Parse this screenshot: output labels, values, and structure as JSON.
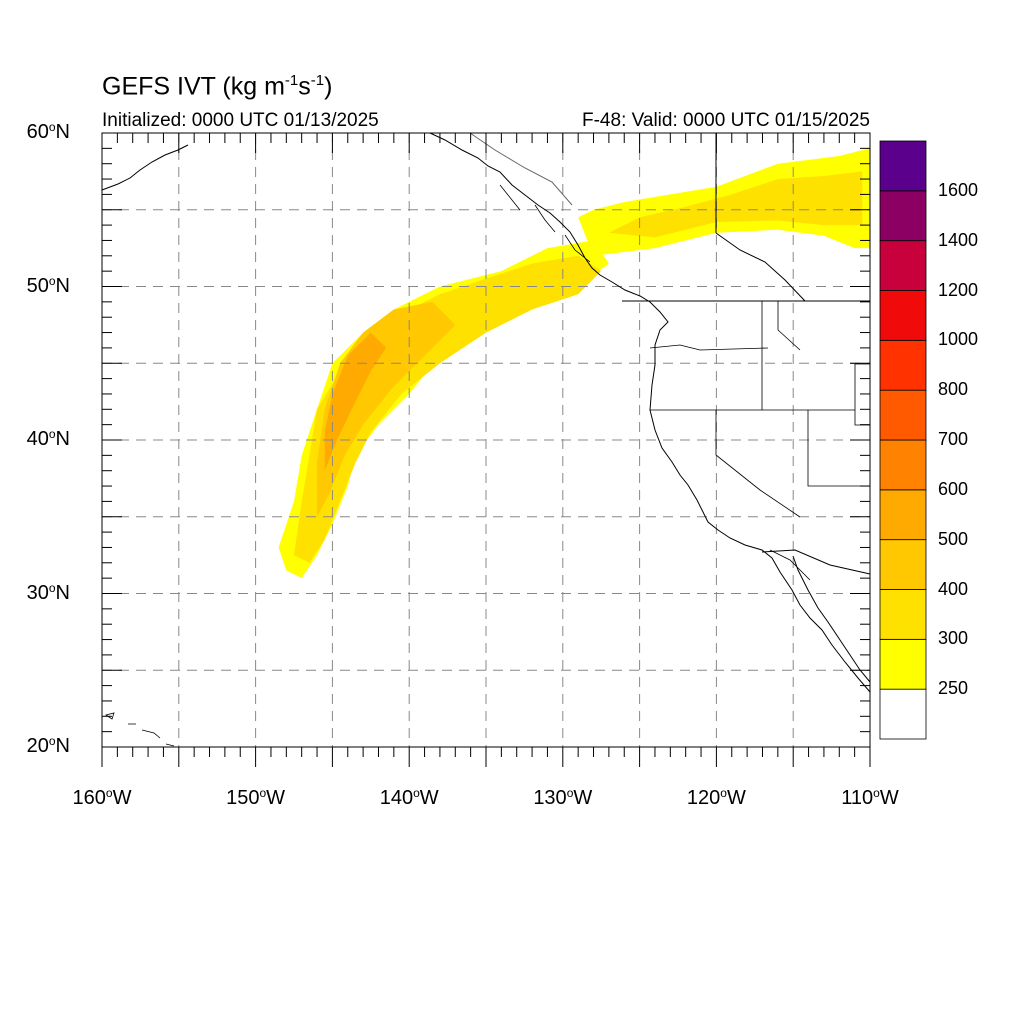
{
  "title": {
    "main": "GEFS IVT (kg m",
    "sup1": "-1",
    "mid": "s",
    "sup2": "-1",
    "end": ")"
  },
  "subtitle": {
    "initialized": "Initialized: 0000 UTC 01/13/2025",
    "valid": "F-48: Valid: 0000 UTC 01/15/2025"
  },
  "axes": {
    "lat_range": [
      20,
      60
    ],
    "lon_range": [
      -160,
      -110
    ],
    "lat_ticks": [
      {
        "value": 60,
        "text": "60",
        "suffix": "N"
      },
      {
        "value": 50,
        "text": "50",
        "suffix": "N"
      },
      {
        "value": 40,
        "text": "40",
        "suffix": "N"
      },
      {
        "value": 30,
        "text": "30",
        "suffix": "N"
      },
      {
        "value": 20,
        "text": "20",
        "suffix": "N"
      }
    ],
    "lon_ticks": [
      {
        "value": -160,
        "text": "160",
        "suffix": "W"
      },
      {
        "value": -150,
        "text": "150",
        "suffix": "W"
      },
      {
        "value": -140,
        "text": "140",
        "suffix": "W"
      },
      {
        "value": -130,
        "text": "130",
        "suffix": "W"
      },
      {
        "value": -120,
        "text": "120",
        "suffix": "W"
      },
      {
        "value": -110,
        "text": "110",
        "suffix": "W"
      }
    ],
    "grid_dashed": true,
    "grid_step_deg": 5
  },
  "colorbar": {
    "placement": "right",
    "levels": [
      {
        "label": "",
        "color": "#ffffff"
      },
      {
        "label": "250",
        "color": "#ffff00"
      },
      {
        "label": "300",
        "color": "#ffe100"
      },
      {
        "label": "400",
        "color": "#ffc800"
      },
      {
        "label": "500",
        "color": "#ffaa00"
      },
      {
        "label": "600",
        "color": "#ff8200"
      },
      {
        "label": "700",
        "color": "#ff5a00"
      },
      {
        "label": "800",
        "color": "#ff3200"
      },
      {
        "label": "1000",
        "color": "#f00a0a"
      },
      {
        "label": "1200",
        "color": "#c8003c"
      },
      {
        "label": "1400",
        "color": "#8c0064"
      },
      {
        "label": "1600",
        "color": "#5a008c"
      }
    ]
  },
  "chart_data": {
    "type": "heatmap",
    "variable": "IVT",
    "units": "kg m-1 s-1",
    "features": [
      {
        "name": "main-plume-edge",
        "level_index": 1,
        "polygon": [
          [
            -148,
            31.5
          ],
          [
            -147,
            31
          ],
          [
            -146,
            32.5
          ],
          [
            -145,
            34.5
          ],
          [
            -144,
            37
          ],
          [
            -143.5,
            39
          ],
          [
            -142,
            41
          ],
          [
            -140,
            43
          ],
          [
            -138,
            45.5
          ],
          [
            -135,
            47.5
          ],
          [
            -132,
            49
          ],
          [
            -129,
            50
          ],
          [
            -127,
            51.5
          ],
          [
            -128,
            53
          ],
          [
            -131,
            52.5
          ],
          [
            -134,
            51
          ],
          [
            -138,
            50
          ],
          [
            -141,
            48.5
          ],
          [
            -143,
            47
          ],
          [
            -145,
            45
          ],
          [
            -146,
            42
          ],
          [
            -147,
            39
          ],
          [
            -147.5,
            36
          ],
          [
            -148.5,
            33
          ]
        ]
      },
      {
        "name": "northern-plume-edge",
        "level_index": 1,
        "polygon": [
          [
            -129,
            54.5
          ],
          [
            -128,
            52
          ],
          [
            -124,
            52.5
          ],
          [
            -120,
            53.5
          ],
          [
            -116,
            53.7
          ],
          [
            -113,
            53.3
          ],
          [
            -111,
            52.5
          ],
          [
            -110,
            52.5
          ],
          [
            -110,
            59
          ],
          [
            -112,
            58.5
          ],
          [
            -116,
            58
          ],
          [
            -120,
            56.5
          ],
          [
            -123,
            56
          ],
          [
            -126,
            55.5
          ],
          [
            -128,
            55
          ]
        ]
      },
      {
        "name": "main-plume-300",
        "level_index": 2,
        "polygon": [
          [
            -147.5,
            32.5
          ],
          [
            -146.5,
            32
          ],
          [
            -145.5,
            33.5
          ],
          [
            -144.5,
            36
          ],
          [
            -143.5,
            38.5
          ],
          [
            -142.5,
            40.5
          ],
          [
            -140.5,
            43
          ],
          [
            -138,
            45
          ],
          [
            -135,
            47
          ],
          [
            -132,
            48.5
          ],
          [
            -129,
            49.5
          ],
          [
            -127.5,
            51
          ],
          [
            -129,
            52
          ],
          [
            -132,
            51.5
          ],
          [
            -135,
            50.5
          ],
          [
            -138,
            49.5
          ],
          [
            -141,
            48
          ],
          [
            -143,
            46.5
          ],
          [
            -144.5,
            44.5
          ],
          [
            -146,
            42
          ],
          [
            -146.5,
            39
          ],
          [
            -147,
            36
          ]
        ]
      },
      {
        "name": "northern-plume-300",
        "level_index": 2,
        "polygon": [
          [
            -127,
            53.5
          ],
          [
            -124,
            53.2
          ],
          [
            -120,
            54.2
          ],
          [
            -116,
            54.3
          ],
          [
            -113,
            54
          ],
          [
            -110.5,
            54
          ],
          [
            -110.5,
            57.5
          ],
          [
            -113,
            57.2
          ],
          [
            -116,
            57
          ],
          [
            -119,
            56
          ],
          [
            -122,
            55.2
          ],
          [
            -125,
            54.5
          ]
        ]
      },
      {
        "name": "main-plume-400",
        "level_index": 3,
        "polygon": [
          [
            -146,
            35
          ],
          [
            -145.2,
            36.5
          ],
          [
            -144.2,
            39
          ],
          [
            -143,
            41
          ],
          [
            -141,
            43.5
          ],
          [
            -139,
            45.5
          ],
          [
            -137,
            47.5
          ],
          [
            -138.5,
            49
          ],
          [
            -141,
            48.5
          ],
          [
            -143,
            47
          ],
          [
            -144.5,
            45
          ],
          [
            -145.5,
            42
          ],
          [
            -146,
            38.5
          ]
        ]
      },
      {
        "name": "main-plume-500",
        "level_index": 4,
        "polygon": [
          [
            -145.5,
            38
          ],
          [
            -144.7,
            40
          ],
          [
            -143.5,
            42.5
          ],
          [
            -142.5,
            44.5
          ],
          [
            -141.5,
            46
          ],
          [
            -142.5,
            47
          ],
          [
            -144,
            45.5
          ],
          [
            -145,
            43
          ],
          [
            -145.5,
            40.5
          ]
        ]
      }
    ]
  }
}
